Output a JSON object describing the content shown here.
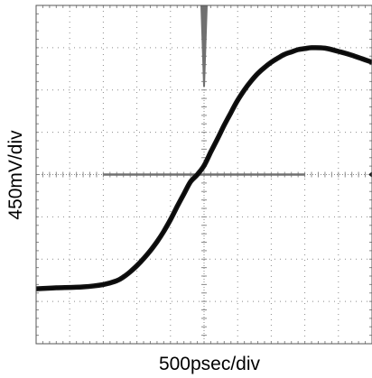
{
  "chart_data": {
    "type": "line",
    "title": "",
    "xlabel": "500psec/div",
    "ylabel": "450mV/div",
    "x_unit": "ps",
    "y_unit": "mV",
    "xlim": [
      -2500,
      2500
    ],
    "ylim": [
      -1800,
      1800
    ],
    "divisions": {
      "x": 10,
      "y": 8
    },
    "grid": true,
    "grid_style": "dotted",
    "series": [
      {
        "x": [
          -2500,
          -2200,
          -1800,
          -1500,
          -1300,
          -1200,
          -1100,
          -1000,
          -900,
          -800,
          -700,
          -600,
          -500,
          -400,
          -300,
          -200,
          -100,
          0,
          100,
          200,
          300,
          400,
          500,
          600,
          700,
          800,
          900,
          1000,
          1100,
          1200,
          1300,
          1400,
          1500,
          1600,
          1800,
          2000,
          2200,
          2500
        ],
        "y": [
          -1215,
          -1205,
          -1195,
          -1170,
          -1130,
          -1090,
          -1035,
          -970,
          -895,
          -810,
          -715,
          -605,
          -480,
          -340,
          -205,
          -75,
          0,
          95,
          240,
          380,
          525,
          660,
          790,
          900,
          995,
          1075,
          1140,
          1195,
          1240,
          1280,
          1305,
          1330,
          1340,
          1350,
          1345,
          1310,
          1270,
          1195
        ]
      }
    ],
    "markers": {
      "ground_level_mV": 0,
      "trigger_time_ps": 0,
      "reference_line_x": [
        -1500,
        1500
      ]
    },
    "colors": {
      "trace": "#111111",
      "frame": "#555555",
      "grid": "#8a8a8a",
      "reference": "#707070"
    }
  }
}
